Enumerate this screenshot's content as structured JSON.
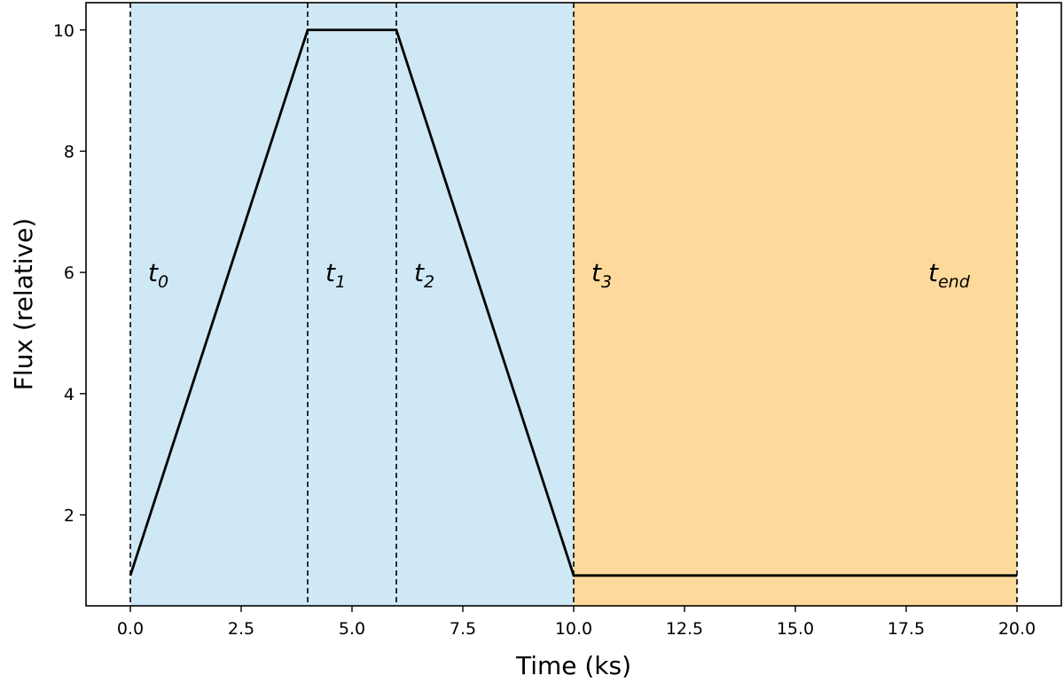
{
  "chart_data": {
    "type": "line",
    "xlabel": "Time (ks)",
    "ylabel": "Flux (relative)",
    "xlim": [
      -1.0,
      21.0
    ],
    "ylim": [
      0.5,
      10.45
    ],
    "x_ticks": [
      0.0,
      2.5,
      5.0,
      7.5,
      10.0,
      12.5,
      15.0,
      17.5,
      20.0
    ],
    "x_tick_labels": [
      "0.0",
      "2.5",
      "5.0",
      "7.5",
      "10.0",
      "12.5",
      "15.0",
      "17.5",
      "20.0"
    ],
    "y_ticks": [
      2,
      4,
      6,
      8,
      10
    ],
    "y_tick_labels": [
      "2",
      "4",
      "6",
      "8",
      "10"
    ],
    "grid": false,
    "series": [
      {
        "x": [
          0,
          4,
          6,
          10,
          20
        ],
        "y": [
          1,
          10,
          10,
          1,
          1
        ],
        "color": "#000000"
      }
    ],
    "shaded_regions": [
      {
        "x": [
          0,
          10
        ],
        "color": "#cfe8f5"
      },
      {
        "x": [
          10,
          20
        ],
        "color": "#fdd99b"
      }
    ],
    "vlines": [
      0,
      4,
      6,
      10,
      20
    ],
    "annotations": [
      {
        "base": "t",
        "sub": "0",
        "x": 0.4,
        "y": 6
      },
      {
        "base": "t",
        "sub": "1",
        "x": 4.4,
        "y": 6
      },
      {
        "base": "t",
        "sub": "2",
        "x": 6.4,
        "y": 6
      },
      {
        "base": "t",
        "sub": "3",
        "x": 10.4,
        "y": 6
      },
      {
        "base": "t",
        "sub": "end",
        "x": 18.0,
        "y": 6
      }
    ]
  }
}
